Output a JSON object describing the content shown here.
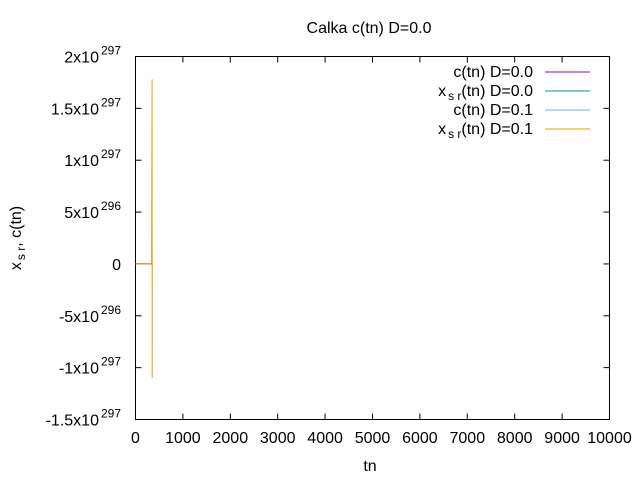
{
  "chart_data": {
    "type": "line",
    "title": "Calka c(tn) D=0.0",
    "xlabel": "tn",
    "ylabel": {
      "base": "x",
      "sub": "s r",
      "rest": ", c(tn)"
    },
    "xlim": [
      0,
      10000
    ],
    "ylim": [
      -1.5e+297,
      2e+297
    ],
    "grid": false,
    "legend_position": "top-right",
    "x_ticks": [
      {
        "value": 0,
        "label": "0"
      },
      {
        "value": 1000,
        "label": "1000"
      },
      {
        "value": 2000,
        "label": "2000"
      },
      {
        "value": 3000,
        "label": "3000"
      },
      {
        "value": 4000,
        "label": "4000"
      },
      {
        "value": 5000,
        "label": "5000"
      },
      {
        "value": 6000,
        "label": "6000"
      },
      {
        "value": 7000,
        "label": "7000"
      },
      {
        "value": 8000,
        "label": "8000"
      },
      {
        "value": 9000,
        "label": "9000"
      },
      {
        "value": 10000,
        "label": "10000"
      }
    ],
    "y_ticks": [
      {
        "value": 2e+297,
        "mant": "2x10",
        "exp": "297"
      },
      {
        "value": 1.5e+297,
        "mant": "1.5x10",
        "exp": "297"
      },
      {
        "value": 1e+297,
        "mant": "1x10",
        "exp": "297"
      },
      {
        "value": 5e+296,
        "mant": "5x10",
        "exp": "296"
      },
      {
        "value": 0,
        "mant": "0",
        "exp": ""
      },
      {
        "value": -5e+296,
        "mant": "-5x10",
        "exp": "296"
      },
      {
        "value": -1e+297,
        "mant": "-1x10",
        "exp": "297"
      },
      {
        "value": -1.5e+297,
        "mant": "-1.5x10",
        "exp": "297"
      }
    ],
    "series": [
      {
        "name": {
          "base": "c(tn) D=0.0",
          "sub": "",
          "rest": ""
        },
        "color": "#9400d3",
        "points": [
          [
            0,
            0
          ],
          [
            340,
            0
          ]
        ]
      },
      {
        "name": {
          "base": "x",
          "sub": "s r",
          "rest": "(tn) D=0.0"
        },
        "color": "#009e73",
        "points": [
          [
            0,
            0
          ],
          [
            340,
            0
          ]
        ]
      },
      {
        "name": {
          "base": "c(tn) D=0.1",
          "sub": "",
          "rest": ""
        },
        "color": "#56b4e9",
        "points": [
          [
            0,
            0
          ],
          [
            340,
            0
          ]
        ]
      },
      {
        "name": {
          "base": "x",
          "sub": "s r",
          "rest": "(tn) D=0.1"
        },
        "color": "#e69f00",
        "points": [
          [
            0,
            0
          ],
          [
            340,
            0
          ],
          [
            350,
            1.78e+297
          ],
          [
            352,
            -1.1e+297
          ],
          [
            354,
            0
          ],
          [
            360,
            0
          ]
        ]
      }
    ]
  }
}
